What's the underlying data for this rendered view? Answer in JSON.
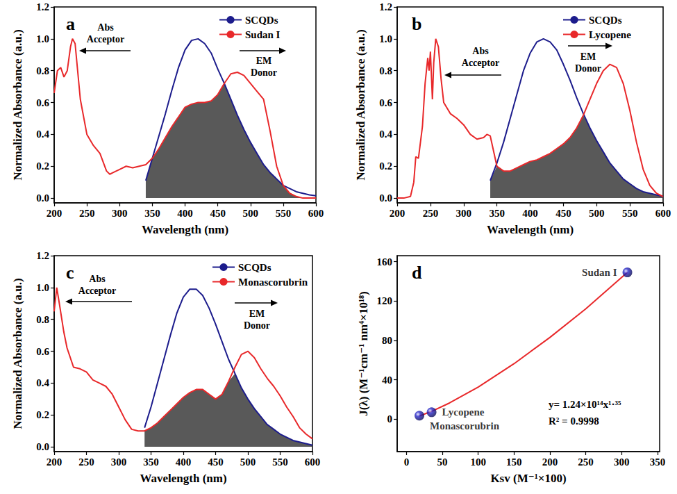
{
  "chart_data": [
    {
      "type": "line",
      "title": "a",
      "xlabel": "Wavelength (nm)",
      "ylabel": "Normalized Absorbance (a.u.)",
      "xlim": [
        200,
        600
      ],
      "xticks": [
        200,
        250,
        300,
        350,
        400,
        450,
        500,
        550,
        600
      ],
      "ylim": [
        -0.03,
        1.2
      ],
      "yticks": [
        {
          "value": 0,
          "label": "0.0"
        },
        0.2,
        0.4,
        0.6,
        0.8,
        {
          "value": 1,
          "label": "1.0"
        },
        1.2
      ],
      "grid": false,
      "legend": "upper right",
      "annotations": [
        "Abs\nAcceptor",
        "EM\nDonor"
      ],
      "x": [
        200,
        205,
        210,
        215,
        220,
        225,
        228,
        232,
        240,
        250,
        260,
        270,
        280,
        285,
        290,
        300,
        310,
        320,
        330,
        340,
        350,
        360,
        370,
        380,
        390,
        400,
        410,
        420,
        430,
        440,
        450,
        460,
        470,
        480,
        490,
        500,
        510,
        520,
        530,
        540,
        550,
        560,
        570,
        580,
        590,
        600
      ],
      "series": [
        {
          "name": "SCQDs",
          "color": "#1c1c8c",
          "values": [
            null,
            null,
            null,
            null,
            null,
            null,
            null,
            null,
            null,
            null,
            null,
            null,
            null,
            null,
            null,
            null,
            null,
            null,
            null,
            0.11,
            0.25,
            0.39,
            0.53,
            0.68,
            0.82,
            0.93,
            0.99,
            1.0,
            0.97,
            0.91,
            0.81,
            0.72,
            0.62,
            0.52,
            0.43,
            0.35,
            0.28,
            0.21,
            0.16,
            0.12,
            0.08,
            0.06,
            0.04,
            0.03,
            0.02,
            0.015
          ]
        },
        {
          "name": "Sudan I",
          "color": "#e8282a",
          "values": [
            0.66,
            0.8,
            0.82,
            0.76,
            0.8,
            0.95,
            1.0,
            0.97,
            0.62,
            0.4,
            0.33,
            0.28,
            0.17,
            0.15,
            0.16,
            0.18,
            0.2,
            0.19,
            0.2,
            0.21,
            0.25,
            0.31,
            0.38,
            0.45,
            0.51,
            0.57,
            0.59,
            0.6,
            0.6,
            0.61,
            0.65,
            0.72,
            0.78,
            0.79,
            0.77,
            0.72,
            0.67,
            0.62,
            0.42,
            0.2,
            0.08,
            0.03,
            0.01,
            0.0,
            0.0,
            0.0
          ]
        }
      ]
    },
    {
      "type": "line",
      "title": "b",
      "xlabel": "Wavelength (nm)",
      "ylabel": "Normalized Absorbance (a.u.)",
      "xlim": [
        200,
        600
      ],
      "xticks": [
        200,
        250,
        300,
        350,
        400,
        450,
        500,
        550,
        600
      ],
      "ylim": [
        -0.03,
        1.2
      ],
      "yticks": [
        {
          "value": 0,
          "label": "0.0"
        },
        0.2,
        0.4,
        0.6,
        0.8,
        {
          "value": 1,
          "label": "1.0"
        },
        1.2
      ],
      "grid": false,
      "legend": "upper right",
      "annotations": [
        "Abs\nAcceptor",
        "EM\nDonor"
      ],
      "x": [
        200,
        210,
        220,
        225,
        228,
        232,
        238,
        242,
        246,
        248,
        250,
        253,
        255,
        258,
        262,
        266,
        270,
        280,
        290,
        300,
        310,
        320,
        330,
        335,
        340,
        350,
        360,
        370,
        380,
        390,
        400,
        410,
        420,
        430,
        440,
        450,
        460,
        470,
        480,
        490,
        500,
        510,
        520,
        530,
        540,
        550,
        560,
        570,
        580,
        590,
        600
      ],
      "series": [
        {
          "name": "SCQDs",
          "color": "#1c1c8c",
          "values": [
            null,
            null,
            null,
            null,
            null,
            null,
            null,
            null,
            null,
            null,
            null,
            null,
            null,
            null,
            null,
            null,
            null,
            null,
            null,
            null,
            null,
            null,
            null,
            null,
            0.11,
            0.22,
            0.35,
            0.5,
            0.65,
            0.8,
            0.91,
            0.98,
            1.0,
            0.98,
            0.93,
            0.84,
            0.74,
            0.63,
            0.53,
            0.44,
            0.36,
            0.29,
            0.22,
            0.17,
            0.12,
            0.09,
            0.06,
            0.04,
            0.03,
            0.02,
            0.01
          ]
        },
        {
          "name": "Lycopene",
          "color": "#e8282a",
          "values": [
            0,
            0,
            0.01,
            0.1,
            0.26,
            0.25,
            0.45,
            0.72,
            0.88,
            0.8,
            0.92,
            0.62,
            0.85,
            1.0,
            0.95,
            0.75,
            0.6,
            0.53,
            0.5,
            0.46,
            0.4,
            0.37,
            0.38,
            0.4,
            0.39,
            0.2,
            0.17,
            0.17,
            0.19,
            0.21,
            0.23,
            0.24,
            0.26,
            0.28,
            0.31,
            0.34,
            0.38,
            0.44,
            0.52,
            0.62,
            0.72,
            0.8,
            0.84,
            0.82,
            0.72,
            0.55,
            0.35,
            0.18,
            0.08,
            0.03,
            0.01
          ]
        }
      ]
    },
    {
      "type": "line",
      "title": "c",
      "xlabel": "Wavelength (nm)",
      "ylabel": "Normalized Absorbance (a.u.)",
      "xlim": [
        200,
        600
      ],
      "xticks": [
        200,
        250,
        300,
        350,
        400,
        450,
        500,
        550,
        600
      ],
      "ylim": [
        -0.03,
        1.2
      ],
      "yticks": [
        {
          "value": 0,
          "label": "0.0"
        },
        0.2,
        0.4,
        0.6,
        0.8,
        {
          "value": 1,
          "label": "1.0"
        },
        1.2
      ],
      "grid": false,
      "legend": "upper right",
      "annotations": [
        "Abs\nAcceptor",
        "EM\nDonor"
      ],
      "x": [
        200,
        204,
        208,
        215,
        220,
        230,
        240,
        250,
        260,
        270,
        280,
        290,
        300,
        310,
        320,
        330,
        340,
        350,
        360,
        370,
        380,
        390,
        400,
        410,
        420,
        430,
        440,
        450,
        460,
        470,
        480,
        490,
        500,
        510,
        520,
        530,
        540,
        550,
        560,
        570,
        580,
        590,
        600
      ],
      "series": [
        {
          "name": "SCQDs",
          "color": "#1c1c8c",
          "values": [
            null,
            null,
            null,
            null,
            null,
            null,
            null,
            null,
            null,
            null,
            null,
            null,
            null,
            null,
            null,
            null,
            0.12,
            0.25,
            0.4,
            0.55,
            0.7,
            0.84,
            0.94,
            0.99,
            0.99,
            0.95,
            0.87,
            0.77,
            0.66,
            0.55,
            0.46,
            0.37,
            0.3,
            0.24,
            0.19,
            0.14,
            0.11,
            0.08,
            0.06,
            0.04,
            0.03,
            0.02,
            0.01
          ]
        },
        {
          "name": "Monascorubrin",
          "color": "#e8282a",
          "values": [
            0.85,
            1.0,
            0.9,
            0.72,
            0.62,
            0.5,
            0.49,
            0.47,
            0.42,
            0.4,
            0.38,
            0.33,
            0.25,
            0.17,
            0.11,
            0.1,
            0.1,
            0.12,
            0.15,
            0.19,
            0.23,
            0.27,
            0.31,
            0.34,
            0.36,
            0.36,
            0.33,
            0.3,
            0.33,
            0.41,
            0.5,
            0.58,
            0.6,
            0.56,
            0.49,
            0.43,
            0.38,
            0.32,
            0.25,
            0.19,
            0.12,
            0.08,
            0.05
          ]
        }
      ]
    },
    {
      "type": "scatter",
      "title": "d",
      "xlabel": "Ksv (M⁻¹×100)",
      "ylabel": "J(λ) (M⁻¹cm⁻¹ nm⁴×10¹⁸)",
      "xlim": [
        -13,
        353
      ],
      "xticks": [
        0,
        50,
        100,
        150,
        200,
        250,
        300,
        350
      ],
      "ylim": [
        -33,
        166
      ],
      "yticks": [
        0,
        40,
        80,
        120,
        160
      ],
      "grid": false,
      "annotations": [
        "y= 1.24×10¹⁴x¹·³⁵",
        "R² = 0.9998"
      ],
      "series": [
        {
          "type": "line",
          "color": "#e8282a",
          "line_style": "solid",
          "x": [
            18,
            35,
            60,
            100,
            150,
            200,
            250,
            308
          ],
          "values": [
            3.2,
            7.9,
            16.4,
            32.6,
            56.3,
            83,
            112,
            149
          ]
        },
        {
          "type": "scatter",
          "color": "#2626c8",
          "marker": "circle",
          "x": [
            18,
            35,
            308
          ],
          "values": [
            3.5,
            7,
            149
          ],
          "labels": [
            "Monascorubrin",
            "Lycopene",
            "Sudan I"
          ]
        }
      ]
    }
  ]
}
